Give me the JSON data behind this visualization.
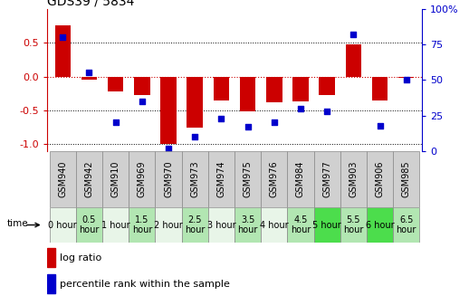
{
  "title": "GDS39 / 5834",
  "samples": [
    "GSM940",
    "GSM942",
    "GSM910",
    "GSM969",
    "GSM970",
    "GSM973",
    "GSM974",
    "GSM975",
    "GSM976",
    "GSM984",
    "GSM977",
    "GSM903",
    "GSM906",
    "GSM985"
  ],
  "time_labels": [
    "0 hour",
    "0.5\nhour",
    "1 hour",
    "1.5\nhour",
    "2 hour",
    "2.5\nhour",
    "3 hour",
    "3.5\nhour",
    "4 hour",
    "4.5\nhour",
    "5 hour",
    "5.5\nhour",
    "6 hour",
    "6.5\nhour"
  ],
  "time_bg_colors": [
    "#e8f5e8",
    "#b2e6b2",
    "#e8f5e8",
    "#b2e6b2",
    "#e8f5e8",
    "#b2e6b2",
    "#e8f5e8",
    "#b2e6b2",
    "#e8f5e8",
    "#b2e6b2",
    "#4cdd4c",
    "#b2e6b2",
    "#4cdd4c",
    "#b2e6b2"
  ],
  "log_ratio": [
    0.75,
    -0.05,
    -0.22,
    -0.27,
    -1.0,
    -0.75,
    -0.35,
    -0.52,
    -0.38,
    -0.37,
    -0.28,
    0.48,
    -0.35,
    -0.02
  ],
  "percentile": [
    80,
    55,
    20,
    35,
    2,
    10,
    23,
    17,
    20,
    30,
    28,
    82,
    18,
    50
  ],
  "ylim_left": [
    -1.1,
    1.0
  ],
  "ylim_right": [
    0,
    100
  ],
  "bar_color": "#cc0000",
  "dot_color": "#0000cc",
  "zero_line_color": "#cc0000",
  "grid_yticks": [
    -1.0,
    -0.5,
    0.5
  ],
  "left_yticks": [
    -1.0,
    -0.5,
    0.0,
    0.5
  ],
  "right_yticks": [
    0,
    25,
    50,
    75,
    100
  ],
  "right_yticklabels": [
    "0",
    "25",
    "50",
    "75",
    "100%"
  ],
  "title_fontsize": 10,
  "axis_fontsize": 8,
  "legend_log_ratio": "log ratio",
  "legend_percentile": "percentile rank within the sample",
  "sample_label_bg": "#d0d0d0",
  "time_label_fontsize": 7,
  "sample_label_fontsize": 7
}
